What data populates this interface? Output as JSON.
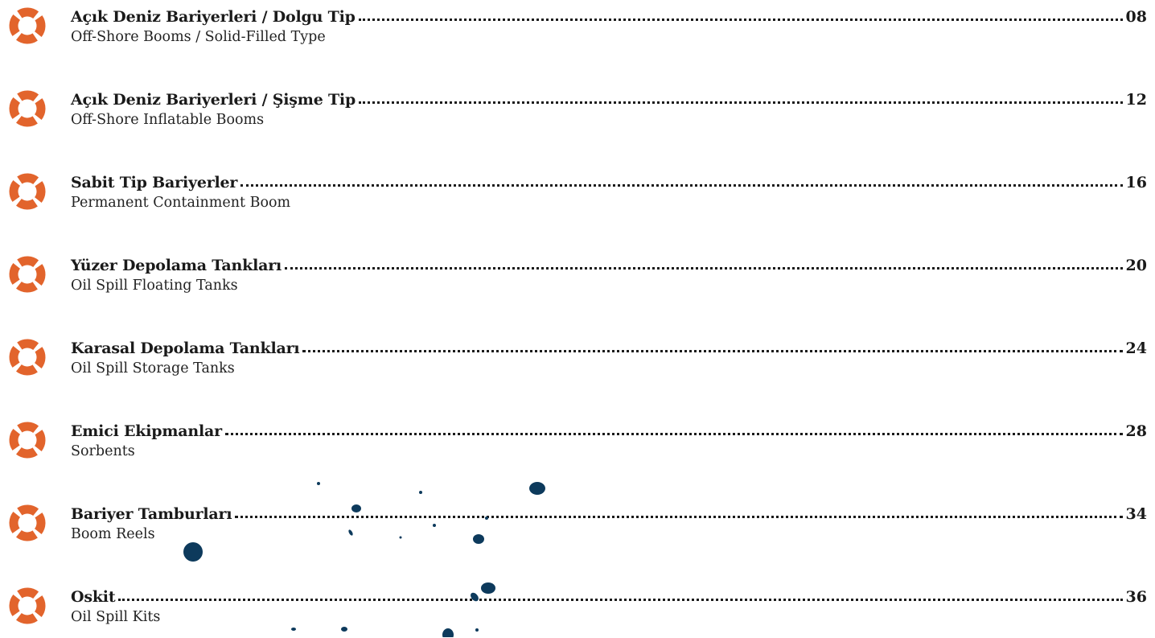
{
  "toc": {
    "entries": [
      {
        "title": "Açık Deniz Bariyerleri / Dolgu Tip",
        "subtitle": "Off-Shore Booms / Solid-Filled Type",
        "page": "08"
      },
      {
        "title": "Açık Deniz Bariyerleri / Şişme Tip",
        "subtitle": "Off-Shore Inflatable Booms",
        "page": "12"
      },
      {
        "title": "Sabit Tip Bariyerler",
        "subtitle": "Permanent Containment Boom",
        "page": "16"
      },
      {
        "title": "Yüzer Depolama Tankları",
        "subtitle": "Oil Spill Floating Tanks",
        "page": "20"
      },
      {
        "title": "Karasal Depolama Tankları",
        "subtitle": "Oil Spill Storage Tanks",
        "page": "24"
      },
      {
        "title": "Emici Ekipmanlar",
        "subtitle": "Sorbents",
        "page": "28"
      },
      {
        "title": "Bariyer Tamburları",
        "subtitle": "Boom Reels",
        "page": "34"
      },
      {
        "title": "Oskit",
        "subtitle": "Oil Spill Kits",
        "page": "36"
      }
    ]
  }
}
